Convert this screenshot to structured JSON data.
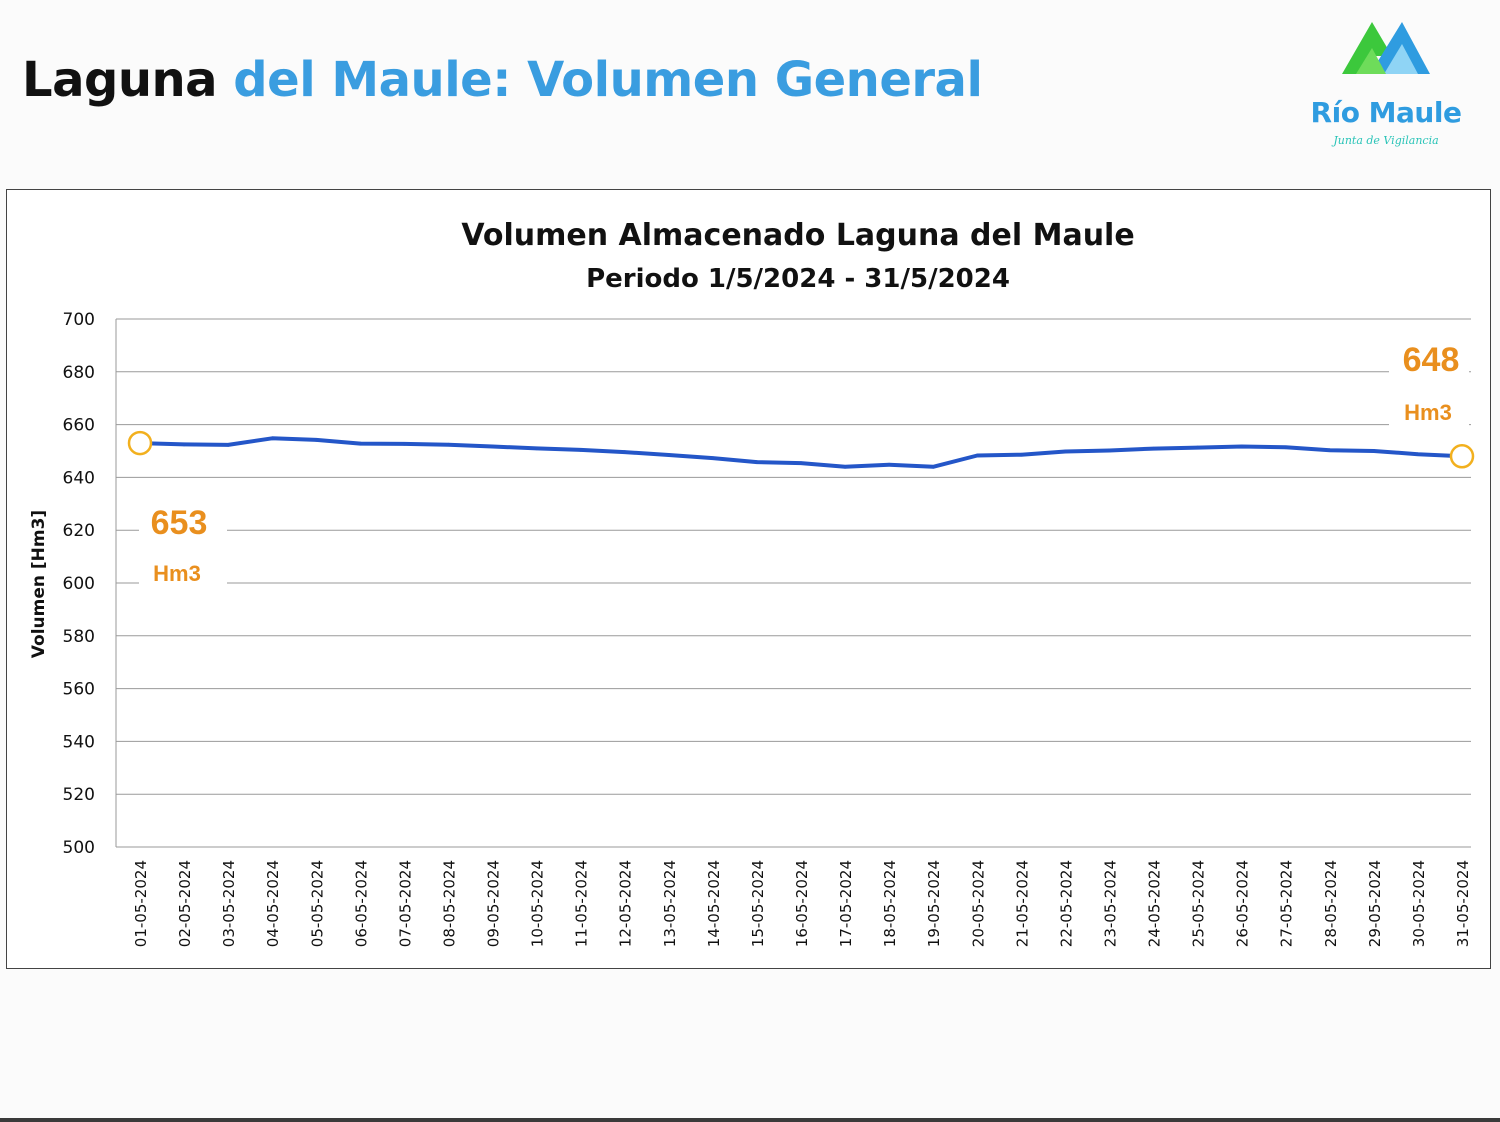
{
  "page": {
    "title_part1": "Laguna",
    "title_part2": "del Maule: Volumen General"
  },
  "logo": {
    "name": "Río Maule",
    "tagline": "Junta de Vigilancia",
    "colors": {
      "green": "#3cc83c",
      "blue": "#2f9ce0",
      "cyan": "#2bc4b8"
    }
  },
  "annotations": {
    "start_value": "653",
    "start_unit": "Hm3",
    "end_value": "648",
    "end_unit": "Hm3",
    "color": "#e98f1e",
    "marker_color": "#f2b01e"
  },
  "chart_data": {
    "type": "line",
    "title": "Volumen Almacenado Laguna del Maule",
    "subtitle": "Periodo 1/5/2024 - 31/5/2024",
    "xlabel": "",
    "ylabel": "Volumen [Hm3]",
    "ylim": [
      500,
      700
    ],
    "yticks": [
      500,
      520,
      540,
      560,
      580,
      600,
      620,
      640,
      660,
      680,
      700
    ],
    "grid": true,
    "line_color": "#2456c8",
    "categories": [
      "01-05-2024",
      "02-05-2024",
      "03-05-2024",
      "04-05-2024",
      "05-05-2024",
      "06-05-2024",
      "07-05-2024",
      "08-05-2024",
      "09-05-2024",
      "10-05-2024",
      "11-05-2024",
      "12-05-2024",
      "13-05-2024",
      "14-05-2024",
      "15-05-2024",
      "16-05-2024",
      "17-05-2024",
      "18-05-2024",
      "19-05-2024",
      "20-05-2024",
      "21-05-2024",
      "22-05-2024",
      "23-05-2024",
      "24-05-2024",
      "25-05-2024",
      "26-05-2024",
      "27-05-2024",
      "28-05-2024",
      "29-05-2024",
      "30-05-2024",
      "31-05-2024"
    ],
    "series": [
      {
        "name": "Volumen",
        "values": [
          653.0,
          652.5,
          652.3,
          654.8,
          654.2,
          652.8,
          652.7,
          652.4,
          651.7,
          651.0,
          650.4,
          649.6,
          648.5,
          647.3,
          645.8,
          645.4,
          644.0,
          644.8,
          644.0,
          648.3,
          648.6,
          649.8,
          650.2,
          650.9,
          651.3,
          651.7,
          651.4,
          650.3,
          650.0,
          648.8,
          648.0
        ]
      }
    ]
  }
}
